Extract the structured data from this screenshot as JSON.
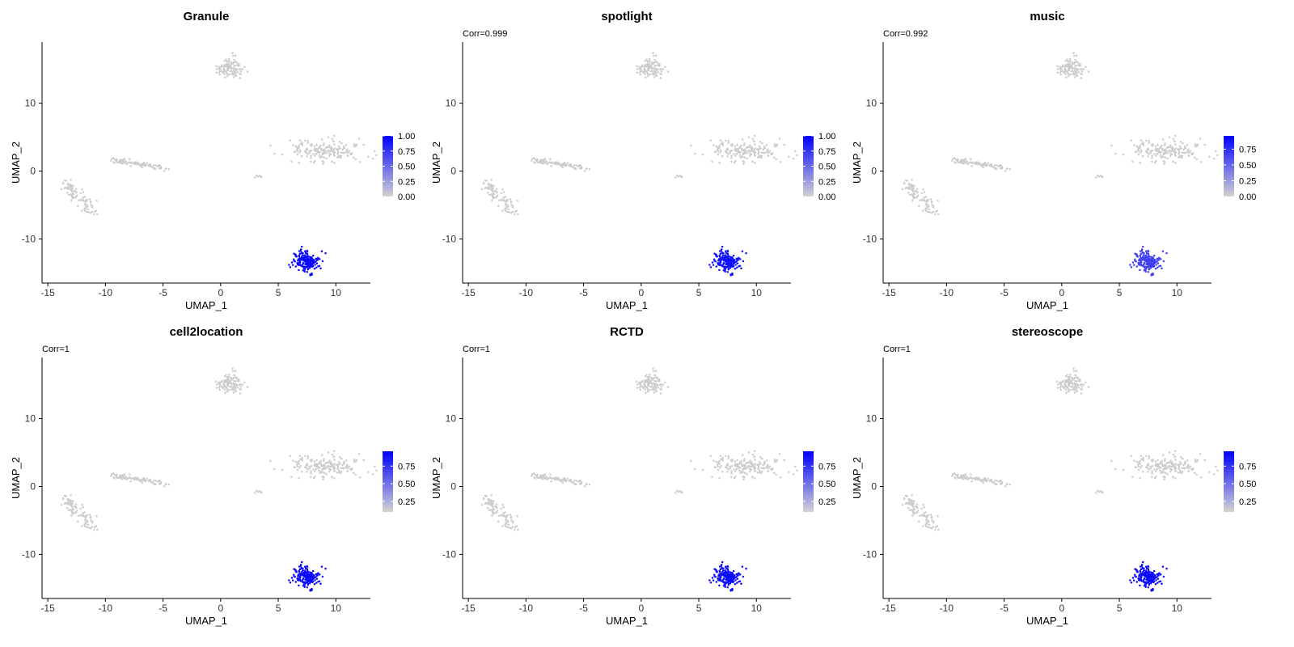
{
  "chart_data": [
    {
      "type": "scatter",
      "title": "Granule",
      "annotation": "",
      "xlabel": "UMAP_1",
      "ylabel": "UMAP_2",
      "xlim": [
        -15.5,
        13
      ],
      "ylim": [
        -16.5,
        19
      ],
      "xticks": [
        -15,
        -10,
        -5,
        0,
        5,
        10
      ],
      "yticks": [
        -10,
        0,
        10
      ],
      "legend": {
        "position": "right",
        "min": 0.0,
        "max": 1.0,
        "ticks": [
          "0.00",
          "0.25",
          "0.50",
          "0.75",
          "1.00"
        ],
        "tick_values": [
          0,
          0.25,
          0.5,
          0.75,
          1.0
        ],
        "low_color": "#d3d3d3",
        "high_color": "#0000ff"
      },
      "highlight_value": 1.0
    },
    {
      "type": "scatter",
      "title": "spotlight",
      "annotation": "Corr=0.999",
      "xlabel": "UMAP_1",
      "ylabel": "UMAP_2",
      "xlim": [
        -15.5,
        13
      ],
      "ylim": [
        -16.5,
        19
      ],
      "xticks": [
        -15,
        -10,
        -5,
        0,
        5,
        10
      ],
      "yticks": [
        -10,
        0,
        10
      ],
      "legend": {
        "position": "right",
        "min": 0.0,
        "max": 1.0,
        "ticks": [
          "0.00",
          "0.25",
          "0.50",
          "0.75",
          "1.00"
        ],
        "tick_values": [
          0,
          0.25,
          0.5,
          0.75,
          1.0
        ],
        "low_color": "#d3d3d3",
        "high_color": "#0000ff"
      },
      "highlight_value": 0.97
    },
    {
      "type": "scatter",
      "title": "music",
      "annotation": "Corr=0.992",
      "xlabel": "UMAP_1",
      "ylabel": "UMAP_2",
      "xlim": [
        -15.5,
        13
      ],
      "ylim": [
        -16.5,
        19
      ],
      "xticks": [
        -15,
        -10,
        -5,
        0,
        5,
        10
      ],
      "yticks": [
        -10,
        0,
        10
      ],
      "legend": {
        "position": "right",
        "min": 0.0,
        "max": 0.96,
        "ticks": [
          "0.00",
          "0.25",
          "0.50",
          "0.75"
        ],
        "tick_values": [
          0,
          0.25,
          0.5,
          0.75
        ],
        "low_color": "#d3d3d3",
        "high_color": "#0000ff"
      },
      "highlight_value": 0.7
    },
    {
      "type": "scatter",
      "title": "cell2location",
      "annotation": "Corr=1",
      "xlabel": "UMAP_1",
      "ylabel": "UMAP_2",
      "xlim": [
        -15.5,
        13
      ],
      "ylim": [
        -16.5,
        19
      ],
      "xticks": [
        -15,
        -10,
        -5,
        0,
        5,
        10
      ],
      "yticks": [
        -10,
        0,
        10
      ],
      "legend": {
        "position": "right",
        "min": 0.1,
        "max": 0.96,
        "ticks": [
          "0.25",
          "0.50",
          "0.75"
        ],
        "tick_values": [
          0.25,
          0.5,
          0.75
        ],
        "low_color": "#d3d3d3",
        "high_color": "#0000ff"
      },
      "highlight_value": 0.96
    },
    {
      "type": "scatter",
      "title": "RCTD",
      "annotation": "Corr=1",
      "xlabel": "UMAP_1",
      "ylabel": "UMAP_2",
      "xlim": [
        -15.5,
        13
      ],
      "ylim": [
        -16.5,
        19
      ],
      "xticks": [
        -15,
        -10,
        -5,
        0,
        5,
        10
      ],
      "yticks": [
        -10,
        0,
        10
      ],
      "legend": {
        "position": "right",
        "min": 0.1,
        "max": 0.96,
        "ticks": [
          "0.25",
          "0.50",
          "0.75"
        ],
        "tick_values": [
          0.25,
          0.5,
          0.75
        ],
        "low_color": "#d3d3d3",
        "high_color": "#0000ff"
      },
      "highlight_value": 0.96
    },
    {
      "type": "scatter",
      "title": "stereoscope",
      "annotation": "Corr=1",
      "xlabel": "UMAP_1",
      "ylabel": "UMAP_2",
      "xlim": [
        -15.5,
        13
      ],
      "ylim": [
        -16.5,
        19
      ],
      "xticks": [
        -15,
        -10,
        -5,
        0,
        5,
        10
      ],
      "yticks": [
        -10,
        0,
        10
      ],
      "legend": {
        "position": "right",
        "min": 0.1,
        "max": 0.96,
        "ticks": [
          "0.25",
          "0.50",
          "0.75"
        ],
        "tick_values": [
          0.25,
          0.5,
          0.75
        ],
        "low_color": "#d3d3d3",
        "high_color": "#0000ff"
      },
      "highlight_value": 0.96
    }
  ],
  "clusters": [
    {
      "name": "top-cluster",
      "cx": 0.8,
      "cy": 15.2,
      "sx": 0.55,
      "sy": 0.75,
      "n": 110,
      "highlight": false
    },
    {
      "name": "right-cluster",
      "cx": 9.3,
      "cy": 3.1,
      "sx": 1.6,
      "sy": 0.8,
      "n": 180,
      "highlight": false
    },
    {
      "name": "left-streak",
      "x0": -9.5,
      "y0": 1.7,
      "x1": -4.8,
      "y1": 0.4,
      "w": 0.35,
      "n": 90,
      "highlight": false
    },
    {
      "name": "far-left-streak",
      "x0": -13.4,
      "y0": -1.8,
      "x1": -11.2,
      "y1": -6.2,
      "w": 0.45,
      "n": 90,
      "highlight": false
    },
    {
      "name": "tiny-cluster",
      "cx": 3.3,
      "cy": -0.8,
      "sx": 0.12,
      "sy": 0.12,
      "n": 6,
      "highlight": false
    },
    {
      "name": "granule-cluster",
      "cx": 7.4,
      "cy": -13.3,
      "sx": 0.55,
      "sy": 0.75,
      "n": 190,
      "highlight": true
    }
  ]
}
